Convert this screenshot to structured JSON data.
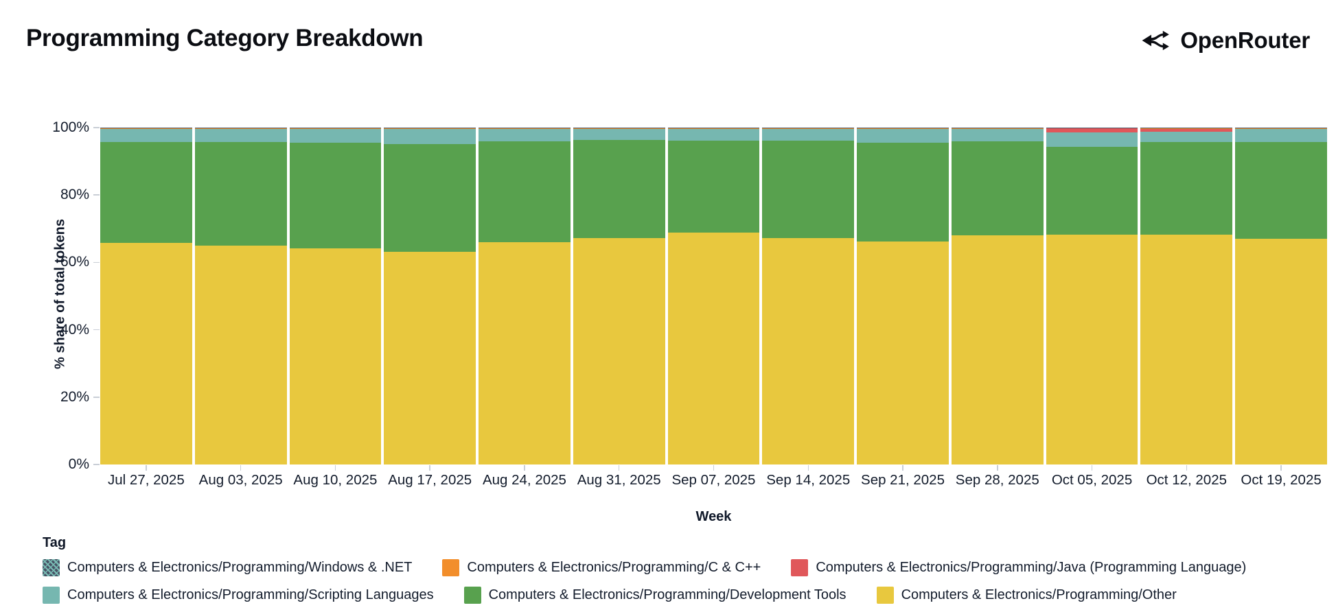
{
  "header": {
    "title": "Programming Category Breakdown",
    "brand": "OpenRouter"
  },
  "axes": {
    "y_ticks": [
      "100%",
      "80%",
      "60%",
      "40%",
      "20%",
      "0%"
    ],
    "y_title": "% share of total tokens",
    "x_title": "Week"
  },
  "legend": {
    "title": "Tag",
    "items": [
      {
        "label": "Computers & Electronics/Programming/Windows & .NET",
        "color": "#475365",
        "pattern": "hatch"
      },
      {
        "label": "Computers & Electronics/Programming/C & C++",
        "color": "#f28e2b",
        "pattern": "solid"
      },
      {
        "label": "Computers & Electronics/Programming/Java (Programming Language)",
        "color": "#e0575a",
        "pattern": "solid"
      },
      {
        "label": "Computers & Electronics/Programming/Scripting Languages",
        "color": "#76b7b0",
        "pattern": "solid"
      },
      {
        "label": "Computers & Electronics/Programming/Development Tools",
        "color": "#58a14e",
        "pattern": "solid"
      },
      {
        "label": "Computers & Electronics/Programming/Other",
        "color": "#e8c83e",
        "pattern": "solid"
      }
    ]
  },
  "chart_data": {
    "type": "bar",
    "stacked": true,
    "normalized_to_100_percent": true,
    "title": "Programming Category Breakdown",
    "xlabel": "Week",
    "ylabel": "% share of total tokens",
    "ylim": [
      0,
      100
    ],
    "grid": false,
    "legend_position": "bottom",
    "categories": [
      "Jul 27, 2025",
      "Aug 03, 2025",
      "Aug 10, 2025",
      "Aug 17, 2025",
      "Aug 24, 2025",
      "Aug 31, 2025",
      "Sep 07, 2025",
      "Sep 14, 2025",
      "Sep 21, 2025",
      "Sep 28, 2025",
      "Oct 05, 2025",
      "Oct 12, 2025",
      "Oct 19, 2025"
    ],
    "series_note": "values are % share per week; series listed bottom-to-top of the stack",
    "series": [
      {
        "name": "Computers & Electronics/Programming/Other",
        "color": "#e8c83e",
        "values": [
          65.8,
          65.0,
          64.2,
          63.1,
          66.0,
          67.2,
          68.9,
          67.2,
          66.1,
          68.0,
          68.3,
          68.3,
          67.0
        ]
      },
      {
        "name": "Computers & Electronics/Programming/Development Tools",
        "color": "#58a14e",
        "values": [
          29.9,
          30.7,
          31.3,
          32.0,
          29.9,
          29.1,
          27.2,
          28.9,
          29.4,
          27.9,
          26.1,
          27.5,
          28.7
        ]
      },
      {
        "name": "Computers & Electronics/Programming/Scripting Languages",
        "color": "#76b7b0",
        "values": [
          3.8,
          3.8,
          4.0,
          4.4,
          3.6,
          3.2,
          3.4,
          3.4,
          4.0,
          3.6,
          4.2,
          3.0,
          3.8
        ]
      },
      {
        "name": "Computers & Electronics/Programming/Java (Programming Language)",
        "color": "#e0575a",
        "values": [
          0.1,
          0.1,
          0.1,
          0.1,
          0.1,
          0.1,
          0.1,
          0.1,
          0.1,
          0.1,
          1.2,
          0.9,
          0.1
        ]
      },
      {
        "name": "Computers & Electronics/Programming/C & C++",
        "color": "#f28e2b",
        "values": [
          0.3,
          0.3,
          0.3,
          0.3,
          0.3,
          0.3,
          0.3,
          0.3,
          0.3,
          0.3,
          0.1,
          0.2,
          0.3
        ]
      },
      {
        "name": "Computers & Electronics/Programming/Windows & .NET",
        "color": "#475365",
        "values": [
          0.1,
          0.1,
          0.1,
          0.1,
          0.1,
          0.1,
          0.1,
          0.1,
          0.1,
          0.1,
          0.1,
          0.1,
          0.1
        ]
      }
    ]
  }
}
